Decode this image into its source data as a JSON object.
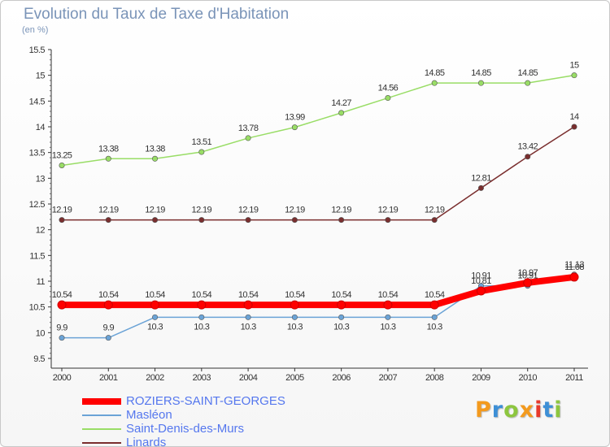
{
  "title": "Evolution du Taux de Taxe d'Habitation",
  "subtitle": "(en %)",
  "logo": {
    "text": "Proxiti",
    "colors": [
      "#f39a1e",
      "#3d8fd6",
      "#8dc63f",
      "#f39a1e",
      "#e8392b",
      "#3d8fd6",
      "#8dc63f"
    ]
  },
  "chart_data": {
    "type": "line",
    "title": "Evolution du Taux de Taxe d'Habitation",
    "ylabel": "(en %)",
    "xlabel": "",
    "x": [
      "2000",
      "2001",
      "2002",
      "2003",
      "2004",
      "2005",
      "2006",
      "2007",
      "2008",
      "2009",
      "2010",
      "2011"
    ],
    "ylim": [
      9.5,
      15.5
    ],
    "yticks": [
      "9.5",
      "10",
      "10.5",
      "11",
      "11.5",
      "12",
      "12.5",
      "13",
      "13.5",
      "14",
      "14.5",
      "15",
      "15.5"
    ],
    "grid": false,
    "legend": "bottom-left",
    "series": [
      {
        "name": "ROZIERS-SAINT-GEORGES",
        "color": "#ff0000",
        "values": [
          10.54,
          10.54,
          10.54,
          10.54,
          10.54,
          10.54,
          10.54,
          10.54,
          10.54,
          10.81,
          10.97,
          11.08
        ],
        "labels": [
          "10.54",
          "10.54",
          "10.54",
          "10.54",
          "10.54",
          "10.54",
          "10.54",
          "10.54",
          "10.54",
          "10.81",
          "10.97",
          "11.08"
        ]
      },
      {
        "name": "Masléon",
        "color": "#6ba3d6",
        "values": [
          9.9,
          9.9,
          10.3,
          10.3,
          10.3,
          10.3,
          10.3,
          10.3,
          10.3,
          10.91,
          10.91,
          11.13
        ],
        "labels": [
          "9.9",
          "9.9",
          "10.3",
          "10.3",
          "10.3",
          "10.3",
          "10.3",
          "10.3",
          "10.3",
          "10.91",
          "10.91",
          "11.13"
        ]
      },
      {
        "name": "Saint-Denis-des-Murs",
        "color": "#99dd66",
        "values": [
          13.25,
          13.38,
          13.38,
          13.51,
          13.78,
          13.99,
          14.27,
          14.56,
          14.85,
          14.85,
          14.85,
          15.0
        ],
        "labels": [
          "13.25",
          "13.38",
          "13.38",
          "13.51",
          "13.78",
          "13.99",
          "14.27",
          "14.56",
          "14.85",
          "14.85",
          "14.85",
          "15"
        ]
      },
      {
        "name": "Linards",
        "color": "#7a2e2e",
        "values": [
          12.19,
          12.19,
          12.19,
          12.19,
          12.19,
          12.19,
          12.19,
          12.19,
          12.19,
          12.81,
          13.42,
          14.0
        ],
        "labels": [
          "12.19",
          "12.19",
          "12.19",
          "12.19",
          "12.19",
          "12.19",
          "12.19",
          "12.19",
          "12.19",
          "12.81",
          "13.42",
          "14"
        ]
      }
    ]
  }
}
